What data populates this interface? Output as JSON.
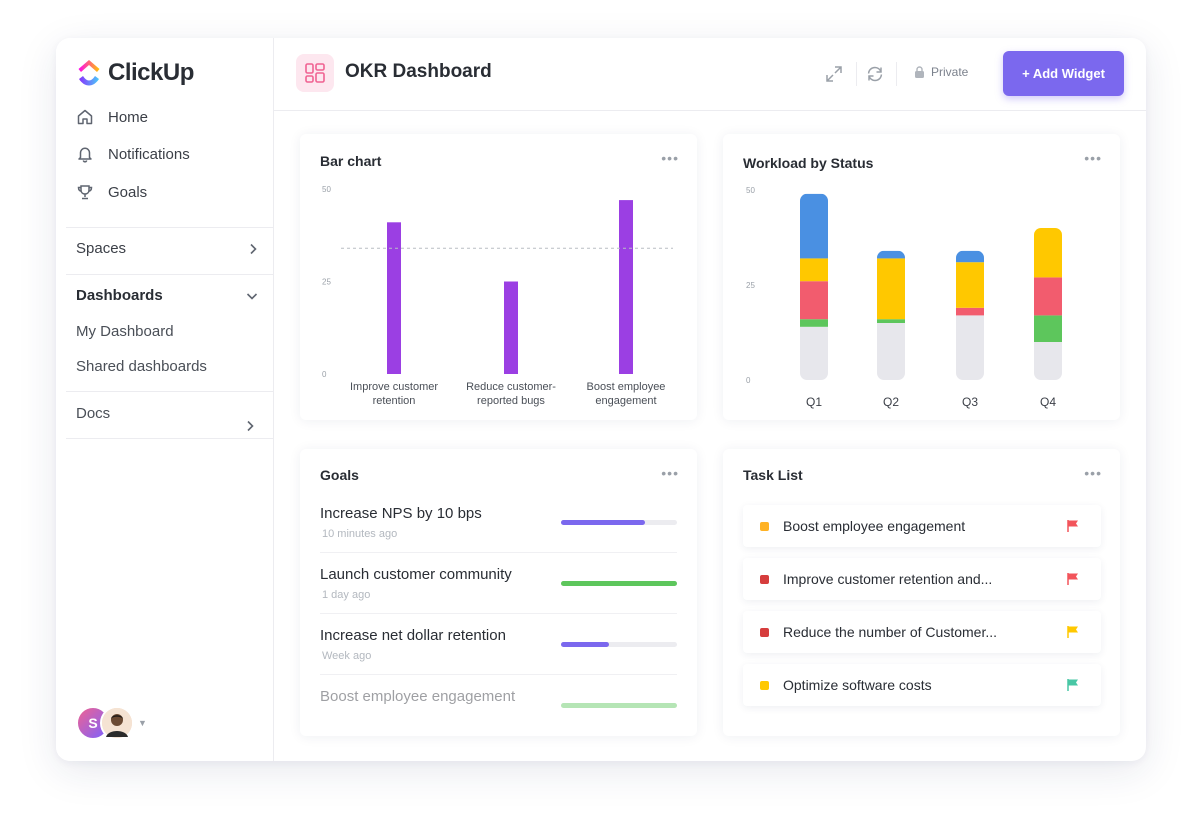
{
  "brand": {
    "name": "ClickUp"
  },
  "sidebar": {
    "nav": [
      {
        "label": "Home",
        "icon": "home-icon"
      },
      {
        "label": "Notifications",
        "icon": "bell-icon"
      },
      {
        "label": "Goals",
        "icon": "trophy-icon"
      }
    ],
    "spaces_label": "Spaces",
    "dashboards_label": "Dashboards",
    "dashboards_items": [
      "My Dashboard",
      "Shared dashboards"
    ],
    "docs_label": "Docs",
    "avatar_initial": "S"
  },
  "header": {
    "title": "OKR Dashboard",
    "privacy": "Private",
    "add_widget": "+ Add Widget"
  },
  "colors": {
    "accent": "#7b68ee",
    "bar": "#9b3fe3",
    "blue": "#4a90e2",
    "yellow": "#ffc800",
    "red": "#f25c6e",
    "green": "#5dc65c",
    "gray": "#e7e7ec"
  },
  "bar_widget": {
    "title": "Bar chart",
    "more": "•••",
    "chart_data": {
      "type": "bar",
      "title": "Bar chart",
      "categories": [
        "Improve customer retention",
        "Reduce customer-reported bugs",
        "Boost employee engagement"
      ],
      "category_lines": [
        [
          "Improve customer",
          "retention"
        ],
        [
          "Reduce customer-",
          "reported bugs"
        ],
        [
          "Boost employee",
          "engagement"
        ]
      ],
      "values": [
        41,
        25,
        47
      ],
      "target": 34,
      "yticks": [
        0,
        25,
        50
      ],
      "ylim": [
        0,
        50
      ]
    }
  },
  "workload_widget": {
    "title": "Workload by Status",
    "more": "•••",
    "chart_data": {
      "type": "bar",
      "stacked": true,
      "title": "Workload by Status",
      "categories": [
        "Q1",
        "Q2",
        "Q3",
        "Q4"
      ],
      "yticks": [
        0,
        25,
        50
      ],
      "ylim": [
        0,
        50
      ],
      "series": [
        {
          "color": "#e7e7ec",
          "values": [
            14,
            15,
            17,
            10
          ]
        },
        {
          "color": "#5dc65c",
          "values": [
            2,
            1,
            0,
            7
          ]
        },
        {
          "color": "#f25c6e",
          "values": [
            10,
            0,
            2,
            10
          ]
        },
        {
          "color": "#ffc800",
          "values": [
            6,
            16,
            12,
            13
          ]
        },
        {
          "color": "#4a90e2",
          "values": [
            17,
            2,
            3,
            0
          ]
        }
      ]
    }
  },
  "goals_widget": {
    "title": "Goals",
    "more": "•••",
    "items": [
      {
        "name": "Increase NPS by 10 bps",
        "time": "10 minutes ago",
        "progress": 0.72,
        "color": "#7b68ee"
      },
      {
        "name": "Launch customer community",
        "time": "1 day ago",
        "progress": 1.0,
        "color": "#5dc65c"
      },
      {
        "name": "Increase net dollar retention",
        "time": "Week ago",
        "progress": 0.41,
        "color": "#7b68ee"
      },
      {
        "name": "Boost employee engagement",
        "time": "",
        "progress": 1.0,
        "color": "#5dc65c"
      }
    ]
  },
  "tasks_widget": {
    "title": "Task List",
    "more": "•••",
    "items": [
      {
        "name": "Boost employee engagement",
        "status_color": "#ffb224",
        "flag_color": "#f2545b"
      },
      {
        "name": "Improve customer retention and...",
        "status_color": "#d63d3d",
        "flag_color": "#f2545b"
      },
      {
        "name": "Reduce the number of Customer...",
        "status_color": "#d63d3d",
        "flag_color": "#ffc800"
      },
      {
        "name": "Optimize software costs",
        "status_color": "#ffc800",
        "flag_color": "#49c7a5"
      }
    ]
  }
}
